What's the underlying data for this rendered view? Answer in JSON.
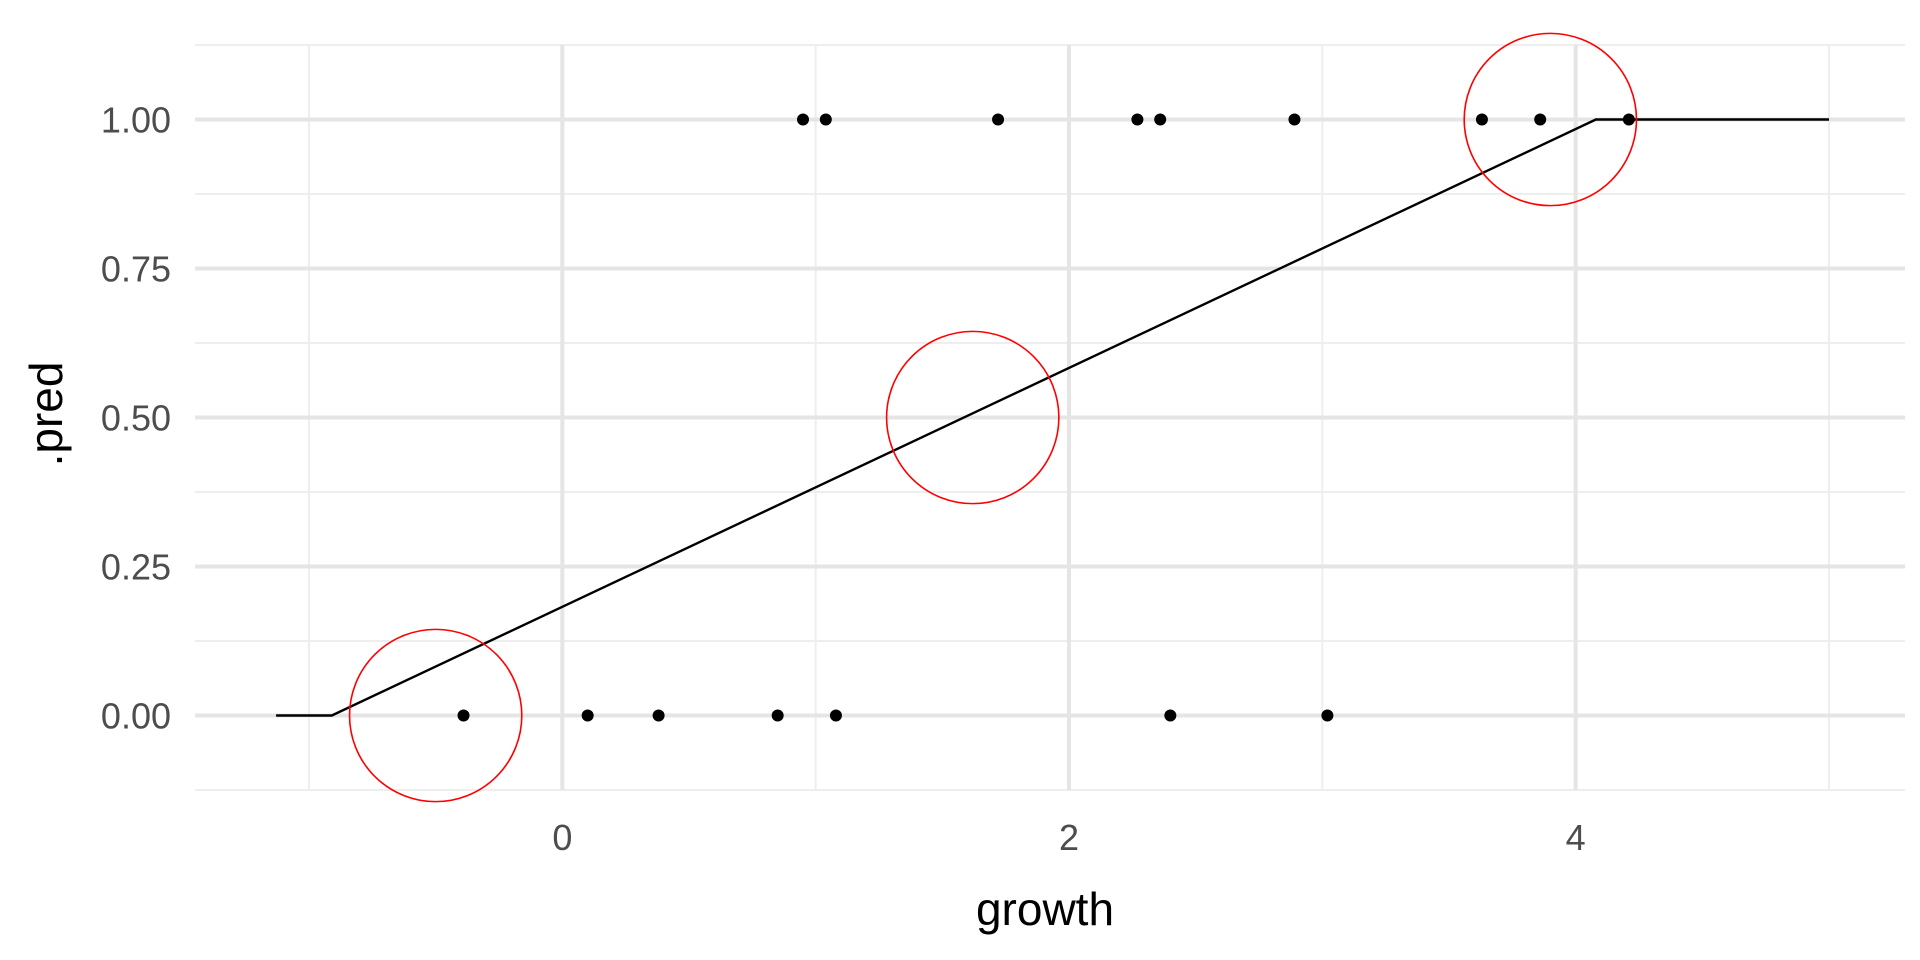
{
  "chart_data": {
    "type": "scatter",
    "title": "",
    "xlabel": "growth",
    "ylabel": ".pred",
    "xlim": [
      -1.45,
      5.3
    ],
    "ylim": [
      -0.125,
      1.125
    ],
    "x_ticks": [
      0,
      2,
      4
    ],
    "x_tick_labels": [
      "0",
      "2",
      "4"
    ],
    "x_minor_ticks": [
      -1,
      1,
      3,
      5
    ],
    "y_ticks": [
      0,
      0.25,
      0.5,
      0.75,
      1
    ],
    "y_tick_labels": [
      "0.00",
      "0.25",
      "0.50",
      "0.75",
      "1.00"
    ],
    "y_minor_ticks": [
      -0.125,
      0.125,
      0.375,
      0.625,
      0.875,
      1.125
    ],
    "grid": true,
    "legend": "none",
    "points": [
      {
        "x": -0.39,
        "y": 0
      },
      {
        "x": 0.1,
        "y": 0
      },
      {
        "x": 0.38,
        "y": 0
      },
      {
        "x": 0.85,
        "y": 0
      },
      {
        "x": 1.08,
        "y": 0
      },
      {
        "x": 2.4,
        "y": 0
      },
      {
        "x": 3.02,
        "y": 0
      },
      {
        "x": 0.95,
        "y": 1
      },
      {
        "x": 1.04,
        "y": 1
      },
      {
        "x": 1.72,
        "y": 1
      },
      {
        "x": 2.27,
        "y": 1
      },
      {
        "x": 2.36,
        "y": 1
      },
      {
        "x": 2.89,
        "y": 1
      },
      {
        "x": 3.63,
        "y": 1
      },
      {
        "x": 3.86,
        "y": 1
      },
      {
        "x": 4.21,
        "y": 1
      }
    ],
    "fit_line": [
      {
        "x": -1.13,
        "y": 0
      },
      {
        "x": -0.91,
        "y": 0
      },
      {
        "x": 4.08,
        "y": 1
      },
      {
        "x": 5.0,
        "y": 1
      }
    ],
    "highlight_circles": [
      {
        "x": -0.5,
        "y": 0,
        "radius_x": 0.34
      },
      {
        "x": 1.62,
        "y": 0.5,
        "radius_x": 0.34
      },
      {
        "x": 3.9,
        "y": 1,
        "radius_x": 0.34
      }
    ],
    "colors": {
      "points": "#000000",
      "line": "#000000",
      "circles": "#ff0000",
      "grid": "#e5e5e5",
      "tick_text": "#4d4d4d",
      "axis_title": "#000000"
    }
  }
}
